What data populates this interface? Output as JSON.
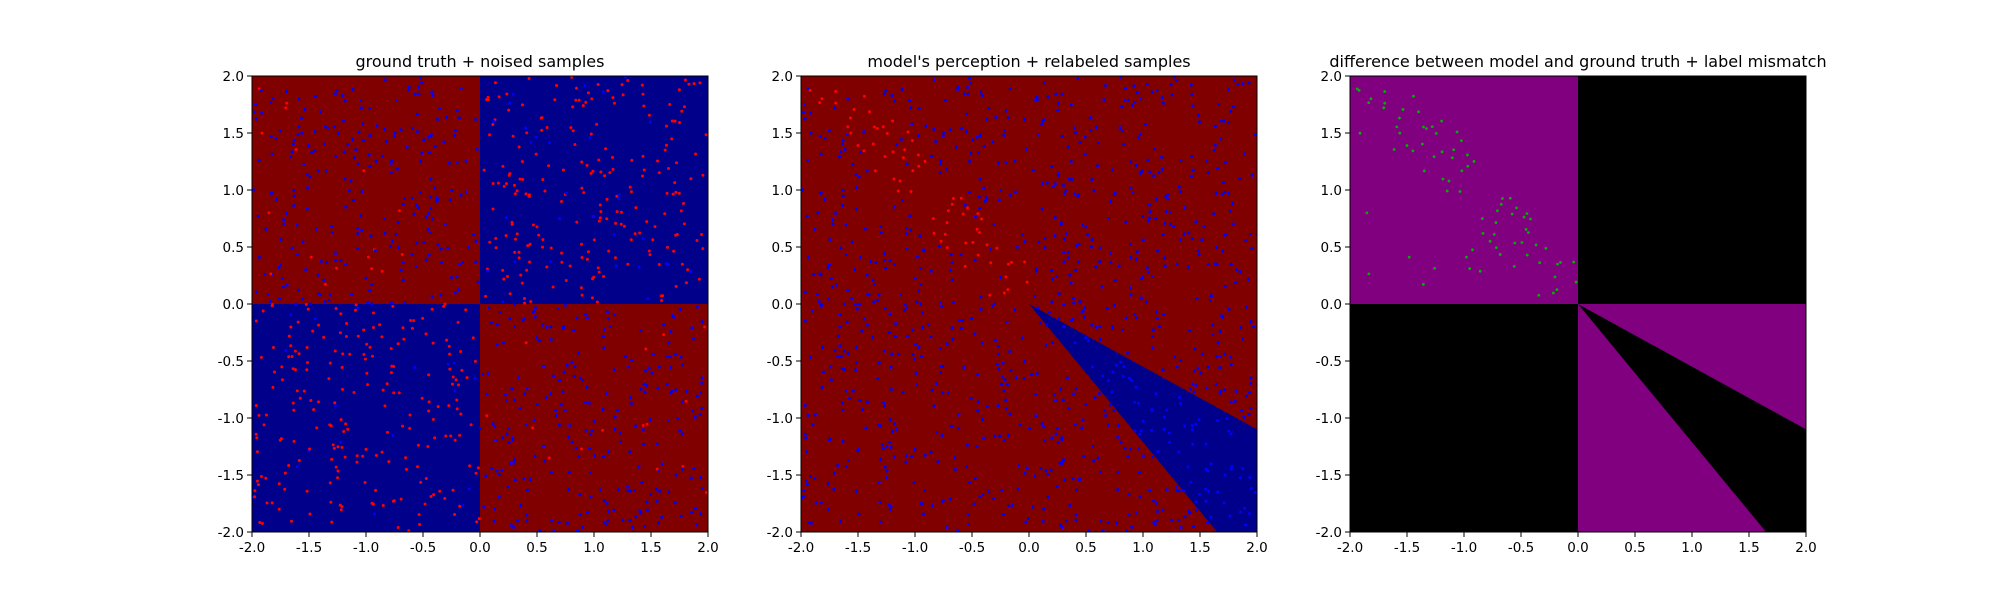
{
  "chart_data": [
    {
      "type": "heatmap",
      "title": "ground truth + noised samples",
      "xlabel": "",
      "ylabel": "",
      "xlim": [
        -2.0,
        2.0
      ],
      "ylim": [
        -2.0,
        2.0
      ],
      "xticks": [
        "-2.0",
        "-1.5",
        "-1.0",
        "-0.5",
        "0.0",
        "0.5",
        "1.0",
        "1.5",
        "2.0"
      ],
      "yticks": [
        "-2.0",
        "-1.5",
        "-1.0",
        "-0.5",
        "0.0",
        "0.5",
        "1.0",
        "1.5",
        "2.0"
      ],
      "background_regions": "xor of quadrants: x*y>0 -> navy, x*y<0 -> maroon",
      "region_colors": {
        "positive_product": "#00008b",
        "negative_product": "#800000"
      },
      "sample_colors": {
        "class_a": "#ff0000",
        "class_b": "#0000ff"
      },
      "n_samples_approx": 1000,
      "grid": false
    },
    {
      "type": "heatmap",
      "title": "model's perception + relabeled samples",
      "xlabel": "",
      "ylabel": "",
      "xlim": [
        -2.0,
        2.0
      ],
      "ylim": [
        -2.0,
        2.0
      ],
      "xticks": [
        "-2.0",
        "-1.5",
        "-1.0",
        "-0.5",
        "0.0",
        "0.5",
        "1.0",
        "1.5",
        "2.0"
      ],
      "yticks": [
        "-2.0",
        "-1.5",
        "-1.0",
        "-0.5",
        "0.0",
        "0.5",
        "1.0",
        "1.5",
        "2.0"
      ],
      "background_regions": "maroon everywhere except navy wedge from origin between slopes -0.55 and -1.2 for x>0",
      "region_colors": {
        "wedge": "#00008b",
        "rest": "#800000"
      },
      "wedge_boundaries": [
        {
          "x": 2.0,
          "y": -1.1
        },
        {
          "x": 1.65,
          "y": -2.0
        }
      ],
      "sample_colors": {
        "class_a": "#ff0000",
        "class_b": "#0000ff"
      },
      "n_samples_approx": 1000,
      "grid": false
    },
    {
      "type": "heatmap",
      "title": "difference between model and ground truth + label mismatch",
      "xlabel": "",
      "ylabel": "",
      "xlim": [
        -2.0,
        2.0
      ],
      "ylim": [
        -2.0,
        2.0
      ],
      "xticks": [
        "-2.0",
        "-1.5",
        "-1.0",
        "-0.5",
        "0.0",
        "0.5",
        "1.0",
        "1.5",
        "2.0"
      ],
      "yticks": [
        "-2.0",
        "-1.5",
        "-1.0",
        "-0.5",
        "0.0",
        "0.5",
        "1.0",
        "1.5",
        "2.0"
      ],
      "background_regions": "purple where model differs from ground truth, black where they agree",
      "region_colors": {
        "differ": "#800080",
        "agree": "#000000"
      },
      "sample_colors": {
        "mismatch": "#00b000"
      },
      "n_samples_approx": 500,
      "grid": false
    }
  ]
}
